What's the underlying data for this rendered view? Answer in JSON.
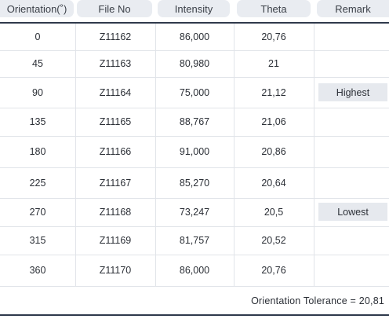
{
  "table": {
    "headers": [
      "Orientation(˚)",
      "File No",
      "Intensity",
      "Theta",
      "Remark"
    ],
    "rows": [
      {
        "orientation": "0",
        "file_no": "Z11162",
        "intensity": "86,000",
        "theta": "20,76",
        "remark": ""
      },
      {
        "orientation": "45",
        "file_no": "Z11163",
        "intensity": "80,980",
        "theta": "21",
        "remark": ""
      },
      {
        "orientation": "90",
        "file_no": "Z11164",
        "intensity": "75,000",
        "theta": "21,12",
        "remark": "Highest"
      },
      {
        "orientation": "135",
        "file_no": "Z11165",
        "intensity": "88,767",
        "theta": "21,06",
        "remark": ""
      },
      {
        "orientation": "180",
        "file_no": "Z11166",
        "intensity": "91,000",
        "theta": "20,86",
        "remark": ""
      },
      {
        "orientation": "225",
        "file_no": "Z11167",
        "intensity": "85,270",
        "theta": "20,64",
        "remark": ""
      },
      {
        "orientation": "270",
        "file_no": "Z11168",
        "intensity": "73,247",
        "theta": "20,5",
        "remark": "Lowest"
      },
      {
        "orientation": "315",
        "file_no": "Z11169",
        "intensity": "81,757",
        "theta": "20,52",
        "remark": ""
      },
      {
        "orientation": "360",
        "file_no": "Z11170",
        "intensity": "86,000",
        "theta": "20,76",
        "remark": ""
      }
    ]
  },
  "footer": {
    "tolerance_text": "Orientation Tolerance = 20,81"
  }
}
